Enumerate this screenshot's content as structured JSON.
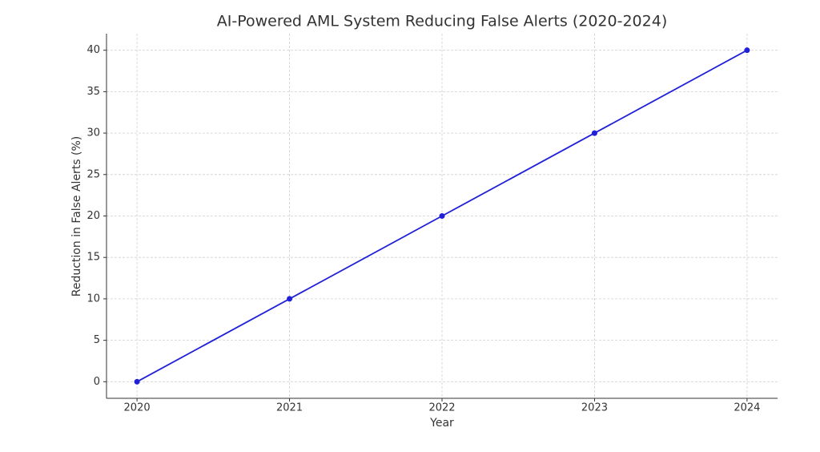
{
  "chart_data": {
    "type": "line",
    "title": "AI-Powered AML System Reducing False Alerts (2020-2024)",
    "x_label": "Year",
    "y_label": "Reduction in False Alerts (%)",
    "x": [
      2020,
      2021,
      2022,
      2023,
      2024
    ],
    "values": [
      0,
      10,
      20,
      30,
      40
    ],
    "color": "#2020d8",
    "xlim": [
      2019.8,
      2024.2
    ],
    "xticks": [
      2020,
      2021,
      2022,
      2023,
      2024
    ],
    "ylim": [
      -2,
      42
    ],
    "yticks": [
      0,
      5,
      10,
      15,
      20,
      25,
      30,
      35,
      40
    ],
    "grid": true
  }
}
